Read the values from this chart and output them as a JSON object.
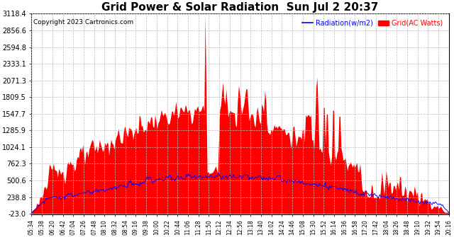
{
  "title": "Grid Power & Solar Radiation  Sun Jul 2 20:37",
  "copyright": "Copyright 2023 Cartronics.com",
  "legend_radiation": "Radiation(w/m2)",
  "legend_grid": "Grid(AC Watts)",
  "yticks": [
    -23.0,
    238.8,
    500.6,
    762.3,
    1024.1,
    1285.9,
    1547.7,
    1809.5,
    2071.3,
    2333.1,
    2594.8,
    2856.6,
    3118.4
  ],
  "ymin": -23.0,
  "ymax": 3118.4,
  "bg_color": "#ffffff",
  "plot_bg_color": "#ffffff",
  "grid_color": "#bbbbbb",
  "red_color": "#ff0000",
  "blue_color": "#0000ff",
  "title_color": "#000000",
  "title_fontsize": 11,
  "copyright_fontsize": 6.5,
  "xtick_fontsize": 5.5,
  "ytick_fontsize": 7
}
